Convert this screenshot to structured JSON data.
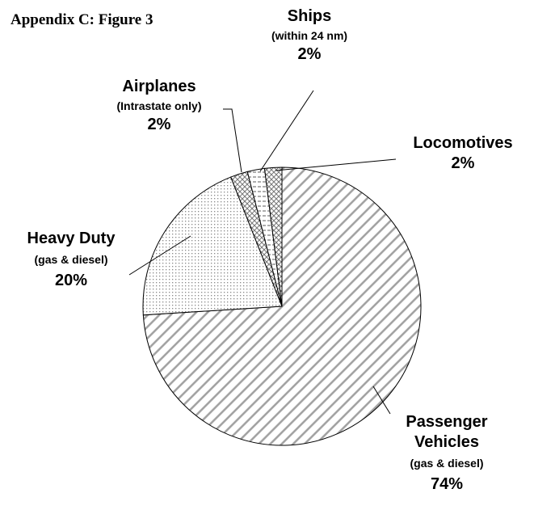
{
  "chart_data": {
    "type": "pie",
    "title": "Appendix C: Figure 3",
    "categories": [
      "Passenger Vehicles",
      "Heavy Duty",
      "Airplanes",
      "Ships",
      "Locomotives"
    ],
    "sublabels": [
      "(gas & diesel)",
      "(gas & diesel)",
      "(Intrastate only)",
      "(within 24 nm)",
      null
    ],
    "values": [
      74,
      20,
      2,
      2,
      2
    ],
    "value_labels": [
      "74%",
      "20%",
      "2%",
      "2%",
      "2%"
    ],
    "patterns": [
      "diagonal",
      "dots",
      "cross",
      "dash",
      "cross"
    ],
    "color": "#000000"
  }
}
